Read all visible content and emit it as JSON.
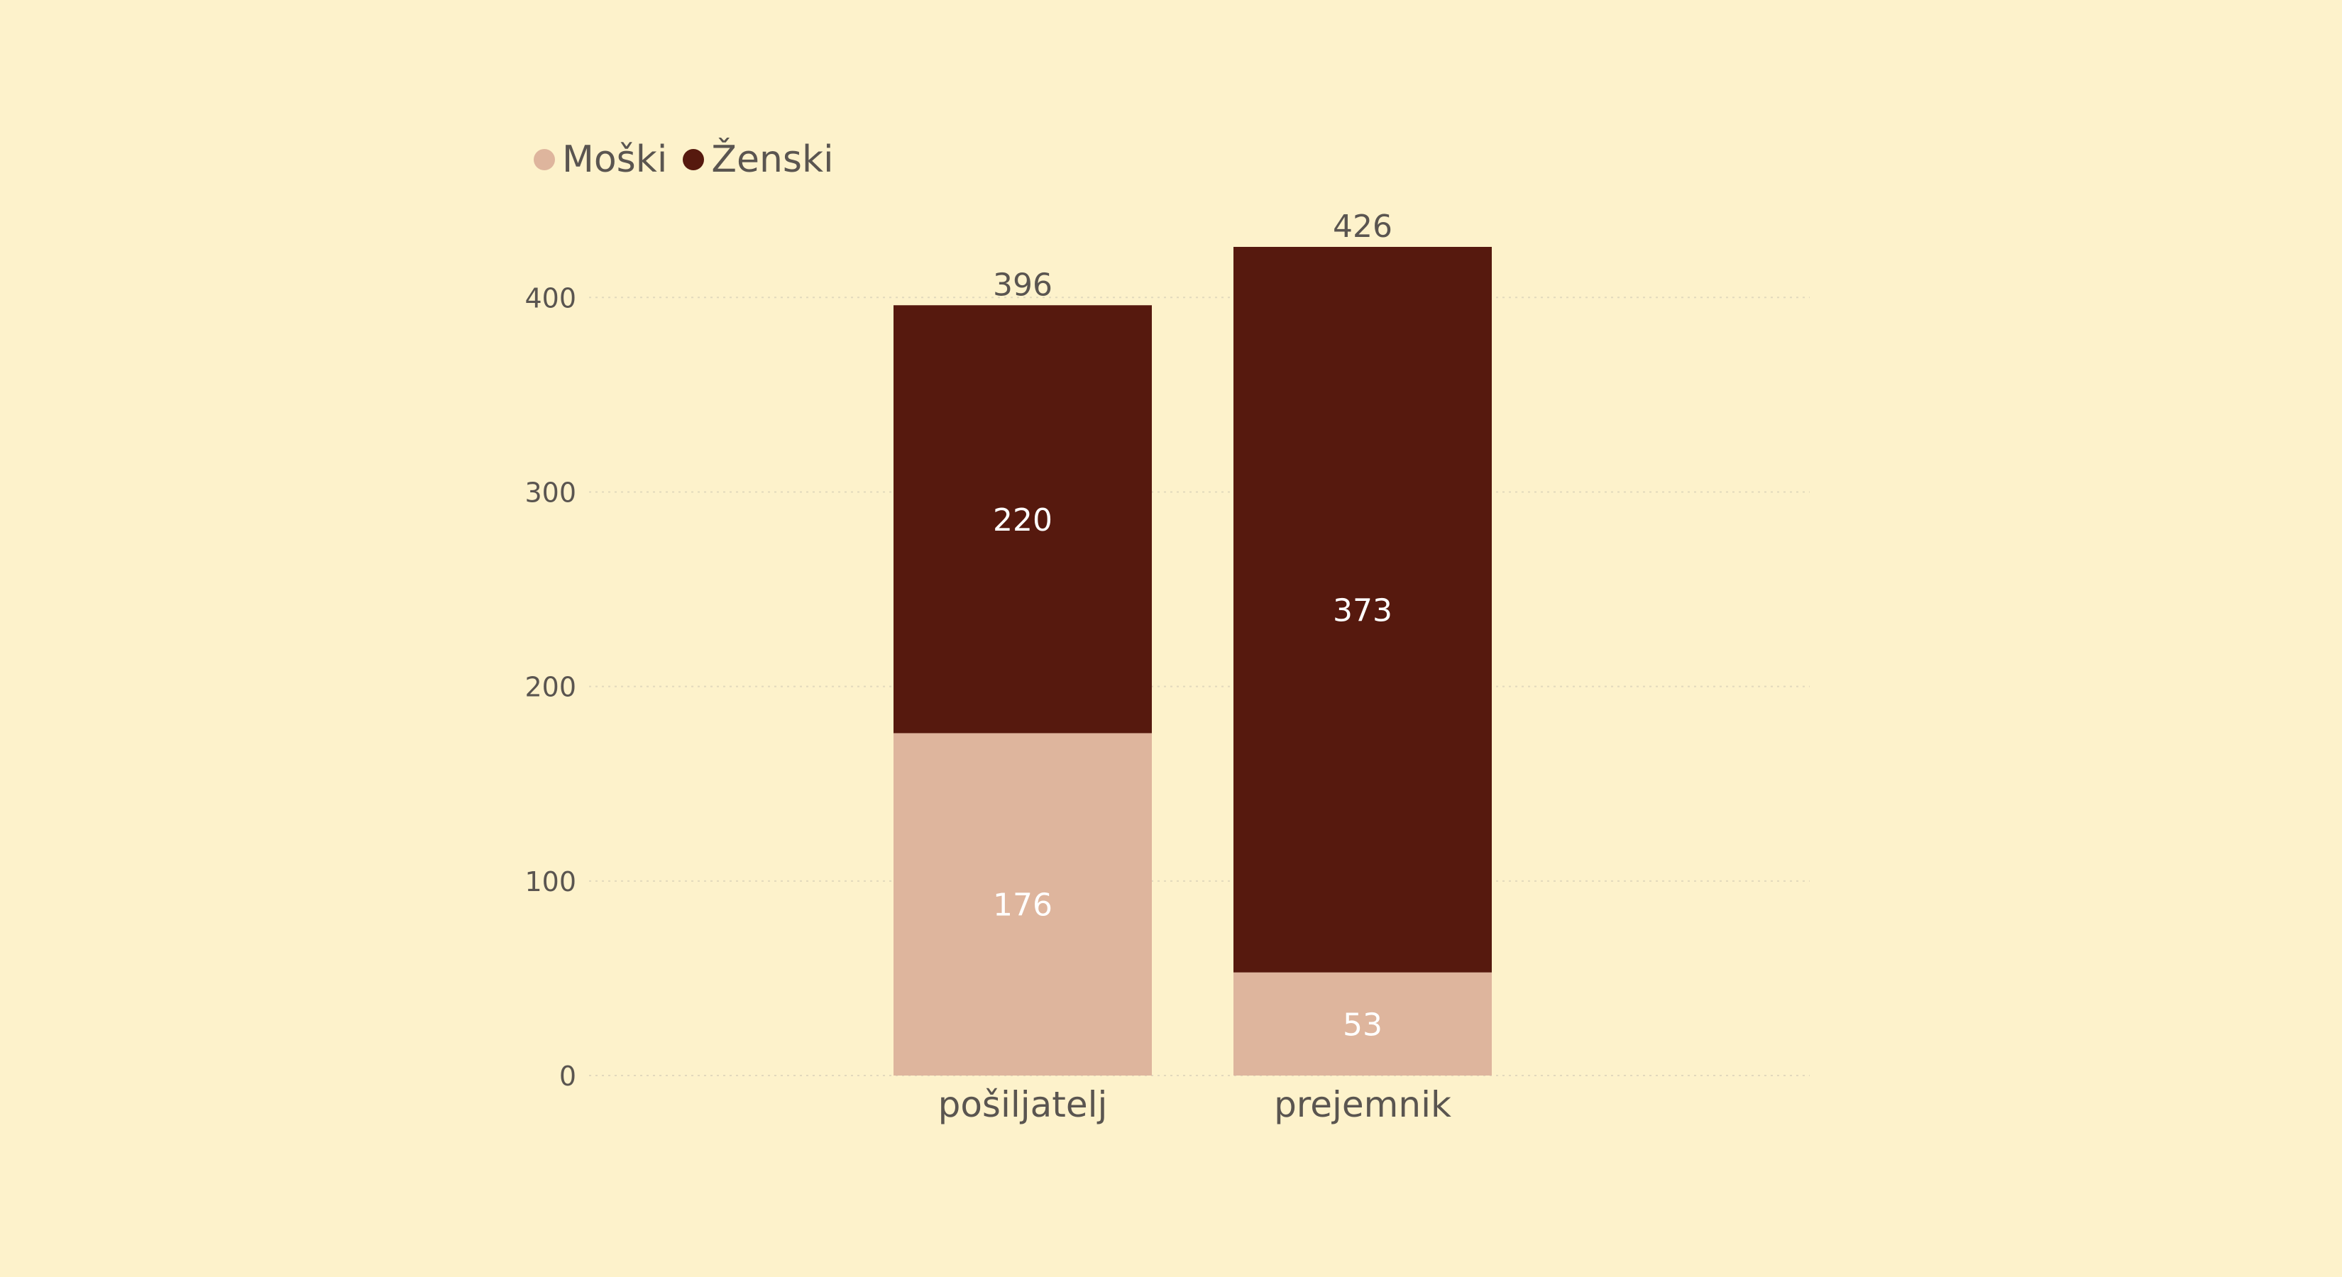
{
  "legend": {
    "items": [
      {
        "label": "Moški",
        "color": "#DEB59D"
      },
      {
        "label": "Ženski",
        "color": "#56190E"
      }
    ]
  },
  "chart_data": {
    "type": "bar",
    "stacked": true,
    "categories": [
      "pošiljatelj",
      "prejemnik"
    ],
    "series": [
      {
        "name": "Moški",
        "color": "#DEB59D",
        "values": [
          176,
          53
        ]
      },
      {
        "name": "Ženski",
        "color": "#56190E",
        "values": [
          220,
          373
        ]
      }
    ],
    "totals": [
      396,
      426
    ],
    "title": "",
    "xlabel": "",
    "ylabel": "",
    "ylim": [
      0,
      426
    ],
    "yticks": [
      "0",
      "100",
      "200",
      "300",
      "400"
    ],
    "grid": true,
    "legend_position": "top-left"
  }
}
